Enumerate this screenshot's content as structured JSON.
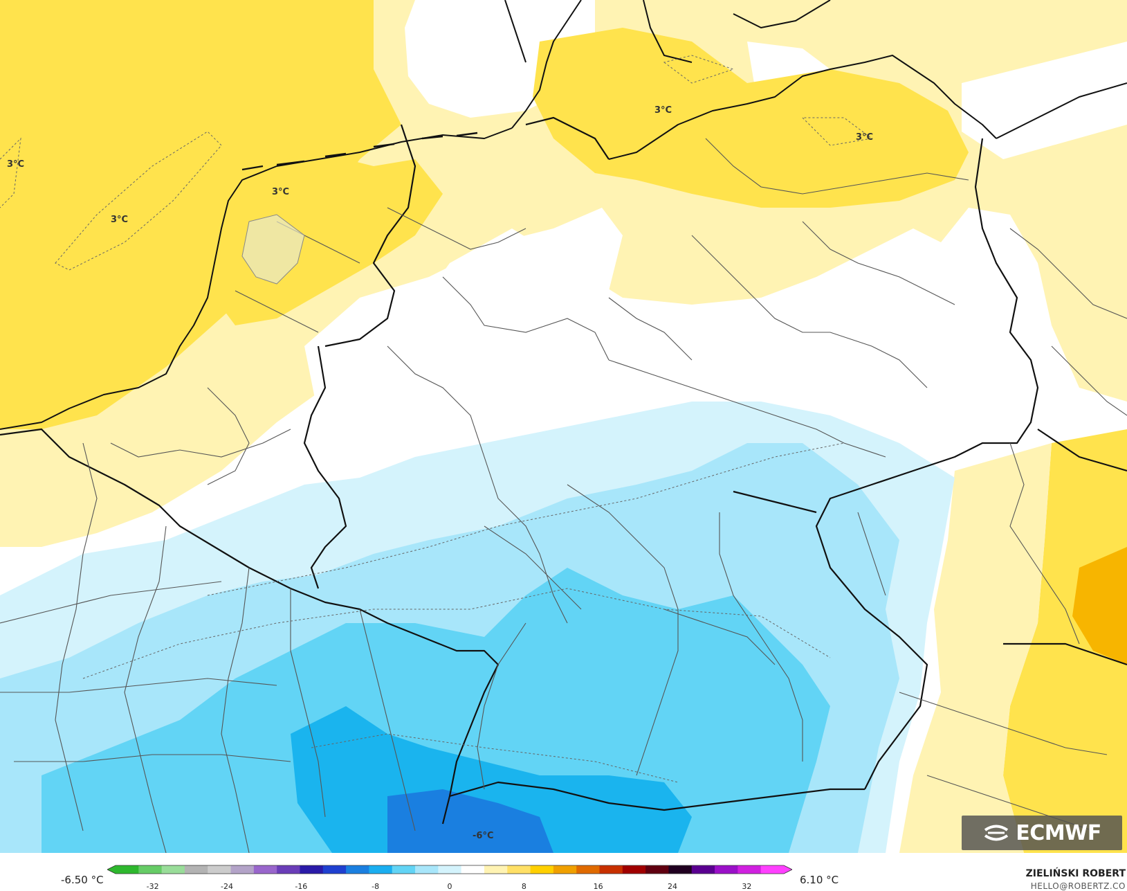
{
  "map": {
    "contour_labels": [
      {
        "text": "3°C"
      },
      {
        "text": "3°C"
      },
      {
        "text": "3°C"
      },
      {
        "text": "3°C"
      },
      {
        "text": "3°C"
      },
      {
        "text": "-6°C"
      }
    ]
  },
  "legend": {
    "min_label": "-6.50 °C",
    "max_label": "6.10 °C",
    "ticks": [
      "-32",
      "-24",
      "-16",
      "-8",
      "0",
      "8",
      "16",
      "24",
      "32"
    ],
    "scale_min": -36,
    "scale_max": 36,
    "colors": [
      "#2eb82e",
      "#66cc66",
      "#99dd99",
      "#b3b3b3",
      "#cccccc",
      "#b3a3c8",
      "#9966cc",
      "#6a3db8",
      "#2a1aa8",
      "#1f40d0",
      "#1a7fe0",
      "#1aaef0",
      "#62d4f5",
      "#a8e6fa",
      "#d4f3fc",
      "#ffffff",
      "#fff3b3",
      "#ffe066",
      "#ffd000",
      "#f0a000",
      "#e06a00",
      "#c83000",
      "#a00000",
      "#600010",
      "#200020",
      "#5a0090",
      "#9a10c8",
      "#d020e0",
      "#ff40ff"
    ]
  },
  "author": {
    "name": "ZIELIŃSKI ROBERT",
    "email": "HELLO@ROBERTZ.CO"
  },
  "branding": {
    "logo_text": "ECMWF",
    "logo_icon": "ecmwf-swirl-icon"
  }
}
